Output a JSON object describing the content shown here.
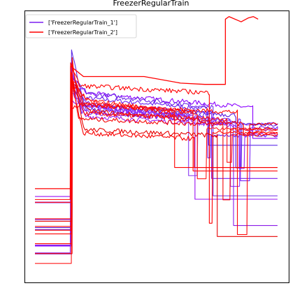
{
  "chart_data": {
    "type": "line",
    "title": "FreezerRegularTrain",
    "xlabel": "",
    "ylabel": "",
    "legend": {
      "placement": "top-left",
      "entries": [
        {
          "label": "['FreezerRegularTrain_1']",
          "color": "#7b1ff0"
        },
        {
          "label": "['FreezerRegularTrain_2']",
          "color": "#ff0000"
        }
      ]
    },
    "xlim": [
      0,
      100
    ],
    "ylim": [
      0,
      100
    ],
    "grid": false,
    "axes_visible": false,
    "series_groups": [
      {
        "name": "['FreezerRegularTrain_1']",
        "colors": [
          "#6a1ff0",
          "#8a00ff",
          "#5e2de8",
          "#9a10f5",
          "#7b1ff0",
          "#8836f2",
          "#6f2ae6",
          "#a020f0",
          "#5c1ce0",
          "#9135ff",
          "#7a28f8",
          "#8b1ce8"
        ],
        "count": 12,
        "baseline_range": [
          8,
          31
        ],
        "plateau_range": [
          59,
          71
        ],
        "tail_level_range": [
          17,
          54
        ],
        "drop_x_range": [
          62,
          90
        ]
      },
      {
        "name": "['FreezerRegularTrain_2']",
        "colors": [
          "#ff0000",
          "#ff0a0a",
          "#f00000",
          "#ff1a1a",
          "#e60000",
          "#ff0505",
          "#fa0000",
          "#ff1010",
          "#f50505",
          "#ff0000"
        ],
        "count": 10,
        "baseline_range": [
          4,
          31
        ],
        "plateau_range": [
          51,
          73
        ],
        "tail_level_range": [
          11,
          54
        ],
        "drop_x_range": [
          55,
          96
        ]
      }
    ],
    "special_series": {
      "name": "['FreezerRegularTrain_2']",
      "color": "#ff0000",
      "x": [
        0,
        14.7,
        14.7,
        18,
        20,
        30,
        45,
        60,
        70,
        77,
        78.5,
        78.5,
        80,
        85,
        88,
        90,
        92
      ],
      "y": [
        33,
        33,
        80,
        77.5,
        76,
        76,
        76,
        73.5,
        73,
        73,
        73,
        98,
        99,
        97,
        98.5,
        99,
        98
      ]
    },
    "random_seed": 7
  }
}
